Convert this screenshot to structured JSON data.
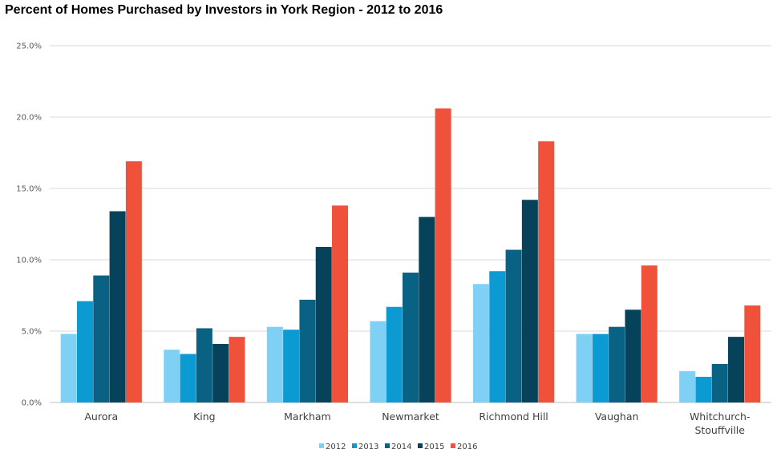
{
  "chart_data": {
    "type": "bar",
    "title": "Percent of Homes Purchased by Investors in York Region - 2012 to 2016",
    "xlabel": "",
    "ylabel": "",
    "ylim": [
      0,
      25
    ],
    "yticks": [
      "0.0%",
      "5.0%",
      "10.0%",
      "15.0%",
      "20.0%",
      "25.0%"
    ],
    "grid": true,
    "legend_position": "bottom",
    "categories": [
      [
        "Aurora"
      ],
      [
        "King"
      ],
      [
        "Markham"
      ],
      [
        "Newmarket"
      ],
      [
        "Richmond Hill"
      ],
      [
        "Vaughan"
      ],
      [
        "Whitchurch-",
        "Stouffville"
      ]
    ],
    "series": [
      {
        "name": "2012",
        "color": "#7ed1f5",
        "values": [
          4.8,
          3.7,
          5.3,
          5.7,
          8.3,
          4.8,
          2.2
        ]
      },
      {
        "name": "2013",
        "color": "#0b9ad1",
        "values": [
          7.1,
          3.4,
          5.1,
          6.7,
          9.2,
          4.8,
          1.8
        ]
      },
      {
        "name": "2014",
        "color": "#096283",
        "values": [
          8.9,
          5.2,
          7.2,
          9.1,
          10.7,
          5.3,
          2.7
        ]
      },
      {
        "name": "2015",
        "color": "#06425a",
        "values": [
          13.4,
          4.1,
          10.9,
          13.0,
          14.2,
          6.5,
          4.6
        ]
      },
      {
        "name": "2016",
        "color": "#f0513a",
        "values": [
          16.9,
          4.6,
          13.8,
          20.6,
          18.3,
          9.6,
          6.8
        ]
      }
    ]
  }
}
